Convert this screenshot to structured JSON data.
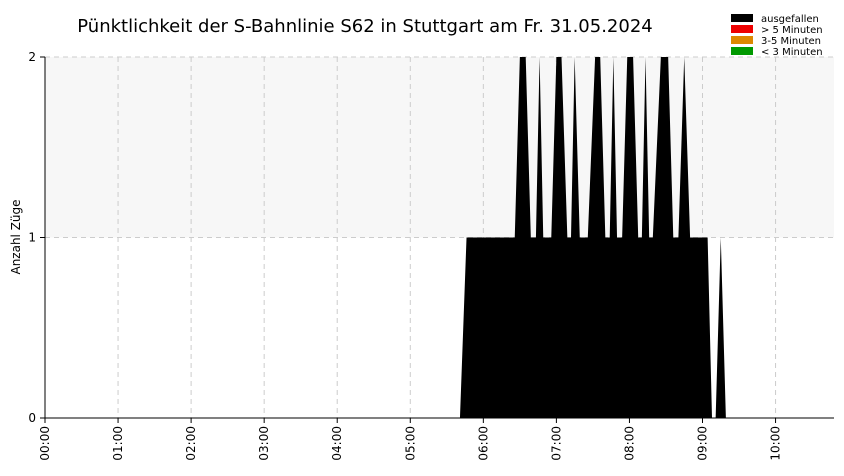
{
  "chart_data": {
    "type": "area",
    "title": "Pünktlichkeit der S-Bahnlinie S62 in Stuttgart am Fr. 31.05.2024",
    "xlabel": "",
    "ylabel": "Anzahl Züge",
    "x_unit": "hours",
    "xlim": [
      0,
      10.8
    ],
    "ylim": [
      0,
      2
    ],
    "x_ticks": [
      {
        "value": 0,
        "label": "00:00"
      },
      {
        "value": 1,
        "label": "01:00"
      },
      {
        "value": 2,
        "label": "02:00"
      },
      {
        "value": 3,
        "label": "03:00"
      },
      {
        "value": 4,
        "label": "04:00"
      },
      {
        "value": 5,
        "label": "05:00"
      },
      {
        "value": 6,
        "label": "06:00"
      },
      {
        "value": 7,
        "label": "07:00"
      },
      {
        "value": 8,
        "label": "08:00"
      },
      {
        "value": 9,
        "label": "09:00"
      },
      {
        "value": 10,
        "label": "10:00"
      }
    ],
    "y_ticks": [
      {
        "value": 0,
        "label": "0"
      },
      {
        "value": 1,
        "label": "1"
      },
      {
        "value": 2,
        "label": "2"
      }
    ],
    "grid": true,
    "legend_position": "top-right",
    "series": [
      {
        "name": "ausgefallen",
        "color": "#000000",
        "x": [
          0,
          5.68,
          5.77,
          6.43,
          6.5,
          6.58,
          6.65,
          6.72,
          6.77,
          6.82,
          6.93,
          7.0,
          7.07,
          7.15,
          7.2,
          7.25,
          7.32,
          7.43,
          7.53,
          7.6,
          7.67,
          7.73,
          7.78,
          7.83,
          7.9,
          7.97,
          8.05,
          8.12,
          8.17,
          8.22,
          8.27,
          8.32,
          8.43,
          8.53,
          8.6,
          8.67,
          8.75,
          8.83,
          8.98,
          9.07,
          9.13,
          9.18,
          9.25,
          9.32,
          10.8
        ],
        "y": [
          0,
          0,
          1,
          1,
          2,
          2,
          1,
          1,
          2,
          1,
          1,
          2,
          2,
          1,
          1,
          2,
          1,
          1,
          2,
          2,
          1,
          1,
          2,
          1,
          1,
          2,
          2,
          1,
          1,
          2,
          1,
          1,
          2,
          2,
          1,
          1,
          2,
          1,
          1,
          1,
          0,
          0,
          1,
          0,
          0
        ]
      },
      {
        "name": "> 5 Minuten",
        "color": "#ee0000",
        "x": [],
        "y": []
      },
      {
        "name": "3-5 Minuten",
        "color": "#dd8800",
        "x": [],
        "y": []
      },
      {
        "name": "< 3 Minuten",
        "color": "#009900",
        "x": [],
        "y": []
      }
    ]
  }
}
